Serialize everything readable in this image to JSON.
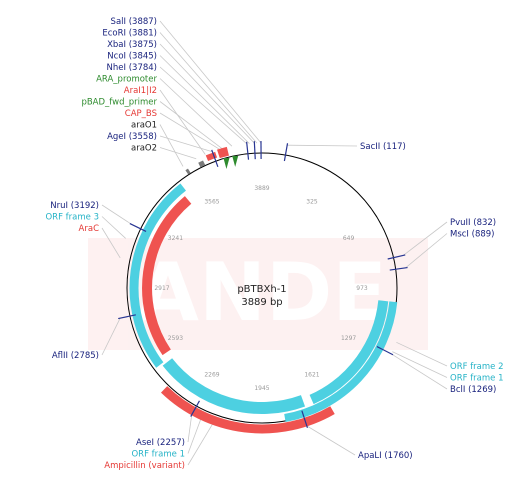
{
  "plasmid": {
    "name": "pBTBXh-1",
    "length_label": "3889 bp",
    "length_bp": 3889
  },
  "watermark": "SnapGene-style watermark",
  "colors": {
    "backbone": "#000000",
    "enzyme_label": "#1a237e",
    "promoter": "#2e8b2e",
    "cap_bs": "#e53935",
    "orf": "#4dd0e1",
    "gene": "#ef5350",
    "leader": "#c0c0c0",
    "watermark": "#fde6e6"
  },
  "ticks": [
    "3889",
    "325",
    "649",
    "973",
    "1297",
    "1621",
    "1945",
    "2269",
    "2593",
    "2917",
    "3241",
    "3565"
  ],
  "labels": {
    "left_top": [
      {
        "text": "SalI (3887)",
        "kind": "enzyme"
      },
      {
        "text": "EcoRI (3881)",
        "kind": "enzyme"
      },
      {
        "text": "XbaI (3875)",
        "kind": "enzyme"
      },
      {
        "text": "NcoI (3845)",
        "kind": "enzyme"
      },
      {
        "text": "NheI (3784)",
        "kind": "enzyme"
      },
      {
        "text": "ARA_promoter",
        "kind": "promoter"
      },
      {
        "text": "AraI1|I2",
        "kind": "gene"
      },
      {
        "text": "pBAD_fwd_primer",
        "kind": "promoter"
      },
      {
        "text": "CAP_BS",
        "kind": "gene"
      },
      {
        "text": "araO1",
        "kind": "feature"
      },
      {
        "text": "AgeI (3558)",
        "kind": "enzyme"
      },
      {
        "text": "araO2",
        "kind": "feature"
      }
    ],
    "left_mid": [
      {
        "text": "NruI (3192)",
        "kind": "enzyme"
      },
      {
        "text": "ORF frame 3",
        "kind": "orf"
      },
      {
        "text": "AraC",
        "kind": "gene"
      }
    ],
    "left_low": [
      {
        "text": "AflII (2785)",
        "kind": "enzyme"
      }
    ],
    "left_bottom": [
      {
        "text": "AseI (2257)",
        "kind": "enzyme"
      },
      {
        "text": "ORF frame 1",
        "kind": "orf"
      },
      {
        "text": "Ampicillin (variant)",
        "kind": "gene"
      }
    ],
    "right_top": [
      {
        "text": "SacII (117)",
        "kind": "enzyme"
      }
    ],
    "right_mid": [
      {
        "text": "PvuII (832)",
        "kind": "enzyme"
      },
      {
        "text": "MscI (889)",
        "kind": "enzyme"
      }
    ],
    "right_low": [
      {
        "text": "ORF frame 2",
        "kind": "orf"
      },
      {
        "text": "ORF frame 1",
        "kind": "orf"
      },
      {
        "text": "BclI (1269)",
        "kind": "enzyme"
      }
    ],
    "right_bottom": [
      {
        "text": "ApaLI (1760)",
        "kind": "enzyme"
      }
    ]
  }
}
